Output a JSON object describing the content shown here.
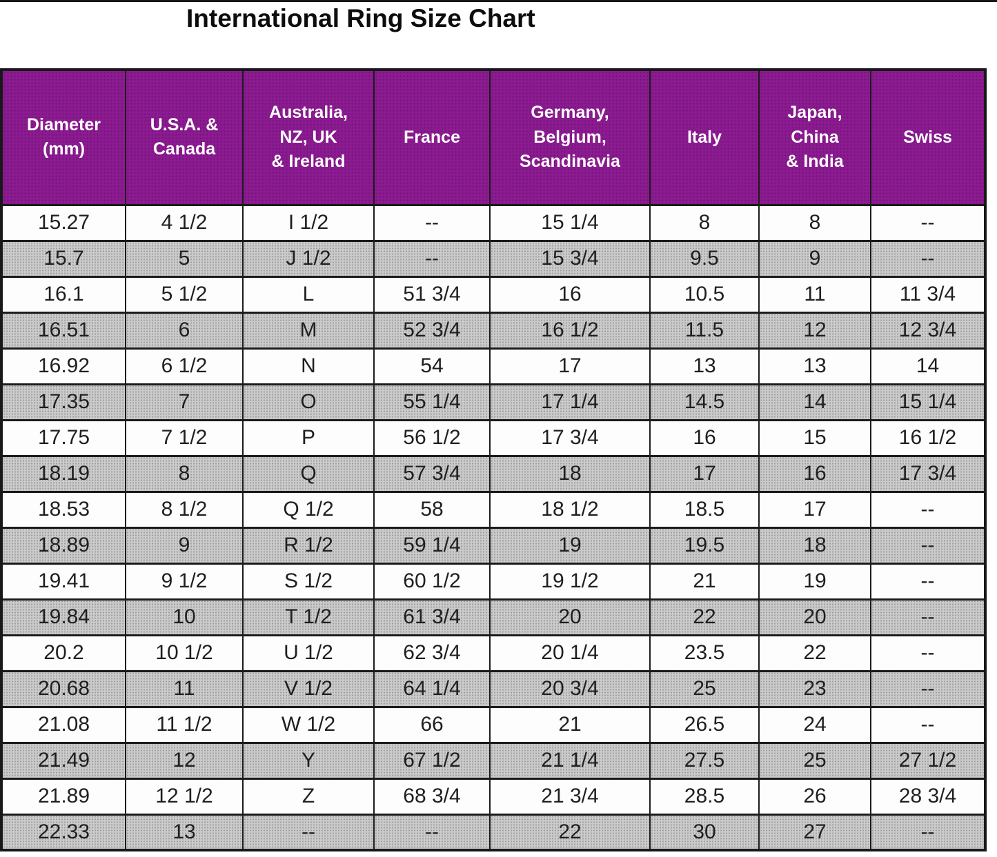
{
  "title": "International Ring Size Chart",
  "colors": {
    "header_bg": "#8c1b91",
    "header_text": "#ffffff",
    "row_white_bg": "#fdfdfd",
    "row_gray_bg": "#cbcbcb",
    "border": "#1b1b1b",
    "title_text": "#0d0d0d"
  },
  "chart_data": {
    "type": "table",
    "title": "International Ring Size Chart",
    "columns": [
      "Diameter\n(mm)",
      "U.S.A. &\nCanada",
      "Australia,\nNZ, UK\n& Ireland",
      "France",
      "Germany,\nBelgium,\nScandinavia",
      "Italy",
      "Japan,\nChina\n& India",
      "Swiss"
    ],
    "rows": [
      [
        "15.27",
        "4 1/2",
        "I 1/2",
        "--",
        "15 1/4",
        "8",
        "8",
        "--"
      ],
      [
        "15.7",
        "5",
        "J 1/2",
        "--",
        "15 3/4",
        "9.5",
        "9",
        "--"
      ],
      [
        "16.1",
        "5 1/2",
        "L",
        "51 3/4",
        "16",
        "10.5",
        "11",
        "11 3/4"
      ],
      [
        "16.51",
        "6",
        "M",
        "52 3/4",
        "16 1/2",
        "11.5",
        "12",
        "12 3/4"
      ],
      [
        "16.92",
        "6 1/2",
        "N",
        "54",
        "17",
        "13",
        "13",
        "14"
      ],
      [
        "17.35",
        "7",
        "O",
        "55 1/4",
        "17 1/4",
        "14.5",
        "14",
        "15 1/4"
      ],
      [
        "17.75",
        "7 1/2",
        "P",
        "56 1/2",
        "17 3/4",
        "16",
        "15",
        "16 1/2"
      ],
      [
        "18.19",
        "8",
        "Q",
        "57 3/4",
        "18",
        "17",
        "16",
        "17 3/4"
      ],
      [
        "18.53",
        "8 1/2",
        "Q 1/2",
        "58",
        "18 1/2",
        "18.5",
        "17",
        "--"
      ],
      [
        "18.89",
        "9",
        "R 1/2",
        "59 1/4",
        "19",
        "19.5",
        "18",
        "--"
      ],
      [
        "19.41",
        "9 1/2",
        "S 1/2",
        "60 1/2",
        "19 1/2",
        "21",
        "19",
        "--"
      ],
      [
        "19.84",
        "10",
        "T 1/2",
        "61 3/4",
        "20",
        "22",
        "20",
        "--"
      ],
      [
        "20.2",
        "10 1/2",
        "U 1/2",
        "62 3/4",
        "20 1/4",
        "23.5",
        "22",
        "--"
      ],
      [
        "20.68",
        "11",
        "V 1/2",
        "64 1/4",
        "20 3/4",
        "25",
        "23",
        "--"
      ],
      [
        "21.08",
        "11 1/2",
        "W 1/2",
        "66",
        "21",
        "26.5",
        "24",
        "--"
      ],
      [
        "21.49",
        "12",
        "Y",
        "67 1/2",
        "21 1/4",
        "27.5",
        "25",
        "27 1/2"
      ],
      [
        "21.89",
        "12 1/2",
        "Z",
        "68 3/4",
        "21 3/4",
        "28.5",
        "26",
        "28 3/4"
      ],
      [
        "22.33",
        "13",
        "--",
        "--",
        "22",
        "30",
        "27",
        "--"
      ]
    ],
    "row_striping": [
      "white",
      "gray"
    ],
    "layout": {
      "header_position": "top",
      "grid": true
    }
  }
}
